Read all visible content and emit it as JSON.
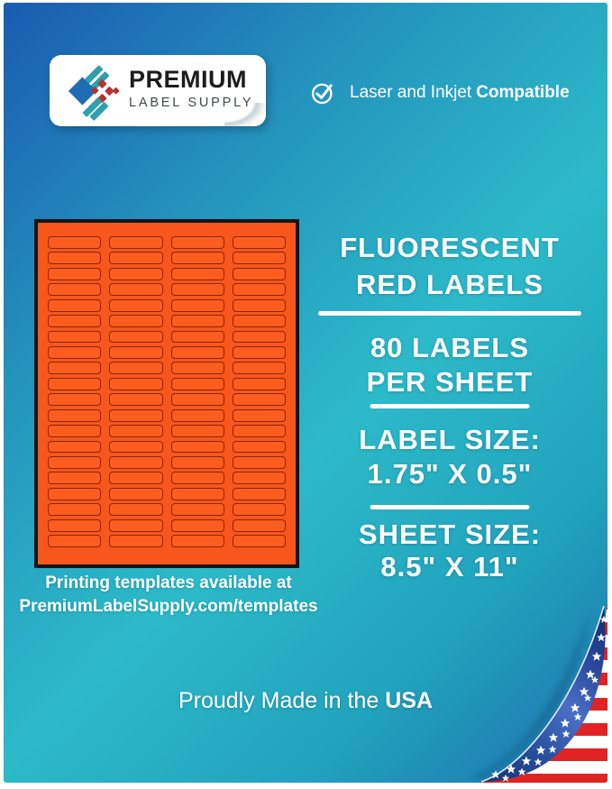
{
  "colors": {
    "bg_blue": "#1a5bb0",
    "bg_blue_mid": "#2493bd",
    "bg_teal": "#2cbac9",
    "bg_teal_mid": "#21a2bd",
    "bg_corner_blue": "#1e6fad",
    "sheet_orange": "#f7571c",
    "label_orange": "#fb5d1f",
    "label_outline": "#8c2507",
    "sheet_border": "#141414",
    "logo_blue": "#1f6cb5",
    "logo_teal": "#2d9fae",
    "logo_red": "#b23431",
    "flag_red": "#e02423"
  },
  "logo_card": {
    "brand_name": "PREMIUM",
    "brand_tagline": "LABEL SUPPLY"
  },
  "compatibility": {
    "text": "Laser and Inkjet",
    "text_bold": "Compatible"
  },
  "label_sheet": {
    "rows": 20,
    "columns": 4,
    "caption_line1": "Printing templates available at",
    "caption_line2": "PremiumLabelSupply.com/templates"
  },
  "product_info": {
    "title_line1": "FLUORESCENT",
    "title_line2": "RED LABELS",
    "count_line1": "80 LABELS",
    "count_line2": "PER SHEET",
    "label_size_heading": "LABEL SIZE:",
    "label_size_value": "1.75\" X 0.5\"",
    "sheet_size_heading": "SHEET SIZE:",
    "sheet_size_value": "8.5\" X 11\""
  },
  "footer": {
    "made_in_text": "Proudly Made in the",
    "made_in_bold": "USA"
  }
}
